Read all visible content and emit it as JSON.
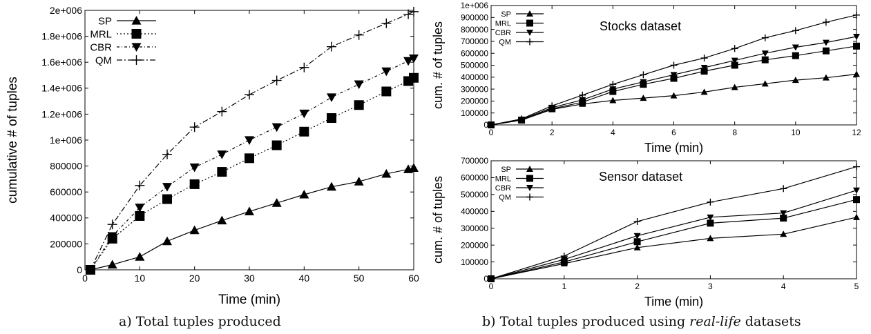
{
  "chart_data": [
    {
      "type": "line",
      "xlabel": "Time (min)",
      "ylabel": "cumulative # of tuples",
      "xlim": [
        0,
        60
      ],
      "ylim": [
        0,
        2000000
      ],
      "xticks": [
        "0",
        "10",
        "20",
        "30",
        "40",
        "50",
        "60"
      ],
      "yticks": [
        "0",
        "200000",
        "400000",
        "600000",
        "800000",
        "1e+006",
        "1.2e+006",
        "1.4e+006",
        "1.6e+006",
        "1.8e+006",
        "2e+006"
      ],
      "legend_position": "top-left",
      "grid": false,
      "series": [
        {
          "name": "SP",
          "marker": "triangle-up",
          "dash": "solid",
          "x": [
            1,
            5,
            10,
            15,
            20,
            25,
            30,
            35,
            40,
            45,
            50,
            55,
            59,
            60
          ],
          "y": [
            0,
            40000,
            100000,
            220000,
            305000,
            380000,
            450000,
            515000,
            580000,
            640000,
            680000,
            740000,
            775000,
            785000
          ]
        },
        {
          "name": "MRL",
          "marker": "square",
          "dash": "dotted",
          "x": [
            1,
            5,
            10,
            15,
            20,
            25,
            30,
            35,
            40,
            45,
            50,
            55,
            59,
            60
          ],
          "y": [
            0,
            240000,
            415000,
            545000,
            660000,
            755000,
            860000,
            960000,
            1065000,
            1170000,
            1270000,
            1375000,
            1455000,
            1480000
          ]
        },
        {
          "name": "CBR",
          "marker": "triangle-down",
          "dash": "dash-dot-short",
          "x": [
            1,
            5,
            10,
            15,
            20,
            25,
            30,
            35,
            40,
            45,
            50,
            55,
            59,
            60
          ],
          "y": [
            0,
            260000,
            480000,
            640000,
            790000,
            890000,
            1000000,
            1100000,
            1205000,
            1330000,
            1430000,
            1530000,
            1610000,
            1630000
          ]
        },
        {
          "name": "QM",
          "marker": "plus",
          "dash": "dash-dot",
          "x": [
            1,
            5,
            10,
            15,
            20,
            25,
            30,
            35,
            40,
            45,
            50,
            55,
            59,
            60
          ],
          "y": [
            0,
            350000,
            650000,
            890000,
            1100000,
            1220000,
            1350000,
            1460000,
            1560000,
            1720000,
            1810000,
            1900000,
            1970000,
            1990000
          ]
        }
      ]
    },
    {
      "type": "line",
      "title": "Stocks dataset",
      "xlabel": "Time (min)",
      "ylabel": "cum. # of tuples",
      "xlim": [
        0,
        12
      ],
      "ylim": [
        0,
        1000000
      ],
      "xticks": [
        "0",
        "2",
        "4",
        "6",
        "8",
        "10",
        "12"
      ],
      "yticks": [
        "0",
        "100000",
        "200000",
        "300000",
        "400000",
        "500000",
        "600000",
        "700000",
        "800000",
        "900000",
        "1e+006"
      ],
      "legend_position": "top-left",
      "grid": false,
      "series": [
        {
          "name": "SP",
          "marker": "triangle-up",
          "dash": "solid",
          "x": [
            0,
            1,
            2,
            3,
            4,
            5,
            6,
            7,
            8,
            9,
            10,
            11,
            12
          ],
          "y": [
            0,
            40000,
            130000,
            175000,
            205000,
            225000,
            245000,
            275000,
            315000,
            345000,
            375000,
            395000,
            425000
          ]
        },
        {
          "name": "MRL",
          "marker": "square",
          "dash": "solid",
          "x": [
            0,
            1,
            2,
            3,
            4,
            5,
            6,
            7,
            8,
            9,
            10,
            11,
            12
          ],
          "y": [
            0,
            40000,
            135000,
            190000,
            280000,
            340000,
            390000,
            450000,
            500000,
            545000,
            580000,
            620000,
            660000
          ]
        },
        {
          "name": "CBR",
          "marker": "triangle-down",
          "dash": "solid",
          "x": [
            0,
            1,
            2,
            3,
            4,
            5,
            6,
            7,
            8,
            9,
            10,
            11,
            12
          ],
          "y": [
            0,
            45000,
            145000,
            210000,
            300000,
            360000,
            420000,
            480000,
            540000,
            600000,
            650000,
            690000,
            740000
          ]
        },
        {
          "name": "QM",
          "marker": "plus",
          "dash": "solid",
          "x": [
            0,
            1,
            2,
            3,
            4,
            5,
            6,
            7,
            8,
            9,
            10,
            11,
            12
          ],
          "y": [
            0,
            50000,
            160000,
            250000,
            340000,
            420000,
            500000,
            560000,
            640000,
            730000,
            790000,
            860000,
            920000
          ]
        }
      ]
    },
    {
      "type": "line",
      "title": "Sensor dataset",
      "xlabel": "Time (min)",
      "ylabel": "cum. # of tuples",
      "xlim": [
        0,
        5
      ],
      "ylim": [
        0,
        700000
      ],
      "xticks": [
        "0",
        "1",
        "2",
        "3",
        "4",
        "5"
      ],
      "yticks": [
        "0",
        "100000",
        "200000",
        "300000",
        "400000",
        "500000",
        "600000",
        "700000"
      ],
      "legend_position": "top-left",
      "grid": false,
      "series": [
        {
          "name": "SP",
          "marker": "triangle-up",
          "dash": "solid",
          "x": [
            0,
            1,
            2,
            3,
            4,
            5
          ],
          "y": [
            0,
            90000,
            185000,
            240000,
            265000,
            365000
          ]
        },
        {
          "name": "MRL",
          "marker": "square",
          "dash": "solid",
          "x": [
            0,
            1,
            2,
            3,
            4,
            5
          ],
          "y": [
            0,
            100000,
            220000,
            330000,
            360000,
            470000
          ]
        },
        {
          "name": "CBR",
          "marker": "triangle-down",
          "dash": "solid",
          "x": [
            0,
            1,
            2,
            3,
            4,
            5
          ],
          "y": [
            0,
            115000,
            255000,
            365000,
            390000,
            525000
          ]
        },
        {
          "name": "QM",
          "marker": "plus",
          "dash": "solid",
          "x": [
            0,
            1,
            2,
            3,
            4,
            5
          ],
          "y": [
            0,
            135000,
            340000,
            455000,
            535000,
            665000
          ]
        }
      ]
    }
  ],
  "captions": {
    "left": "a) Total tuples produced",
    "right_prefix": "b) Total tuples produced using ",
    "right_emphasis": "real-life",
    "right_suffix": " datasets"
  }
}
